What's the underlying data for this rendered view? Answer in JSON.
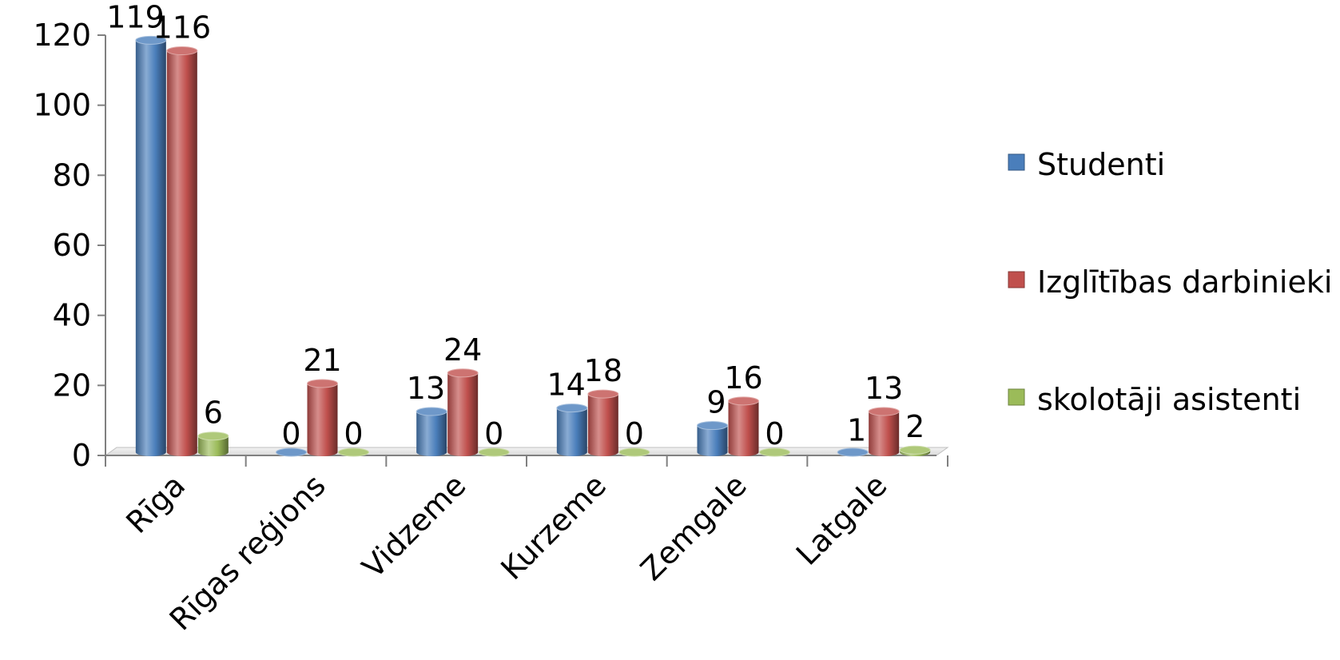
{
  "chart_data": {
    "type": "bar",
    "style": "3d-cylinder",
    "categories": [
      "Rīga",
      "Rīgas reģions",
      "Vidzeme",
      "Kurzeme",
      "Zemgale",
      "Latgale"
    ],
    "series": [
      {
        "name": "Studenti",
        "values": [
          119,
          0,
          13,
          14,
          9,
          1
        ],
        "color": "#4a7ebb"
      },
      {
        "name": "Izglītības darbinieki",
        "values": [
          116,
          21,
          24,
          18,
          16,
          13
        ],
        "color": "#c0504d"
      },
      {
        "name": "skolotāji asistenti",
        "values": [
          6,
          0,
          0,
          0,
          0,
          2
        ],
        "color": "#9bbb59"
      }
    ],
    "yticks": [
      "0",
      "20",
      "40",
      "60",
      "80",
      "100",
      "120"
    ],
    "ylim": [
      0,
      120
    ],
    "grid": false,
    "legend_position": "right"
  }
}
